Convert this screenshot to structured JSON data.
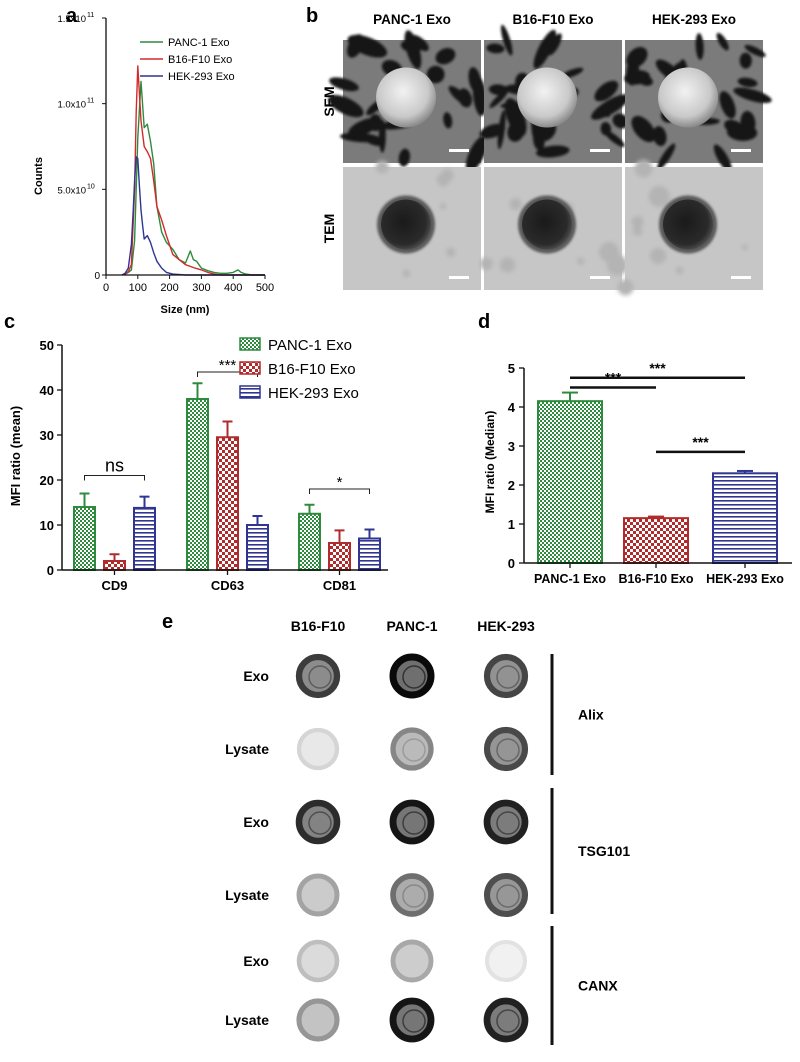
{
  "panel_letters": [
    "a",
    "b",
    "c",
    "d",
    "e"
  ],
  "chart_data": [
    {
      "panel": "a",
      "type": "line",
      "xlabel": "Size (nm)",
      "ylabel": "Counts",
      "xlim": [
        0,
        500
      ],
      "ylim": [
        0,
        150000000000.0
      ],
      "xticks": [
        0,
        100,
        200,
        300,
        400,
        500
      ],
      "yticks": [
        {
          "value": 0,
          "label": "0"
        },
        {
          "value": 50000000000.0,
          "label": "5.0x10",
          "exp": "10"
        },
        {
          "value": 100000000000.0,
          "label": "1.0x10",
          "exp": "11"
        },
        {
          "value": 150000000000.0,
          "label": "1.5x10",
          "exp": "11"
        }
      ],
      "legend_position": "top-right",
      "series": [
        {
          "name": "PANC-1 Exo",
          "color": "#2e8b3e",
          "x": [
            55,
            70,
            80,
            90,
            100,
            110,
            120,
            130,
            140,
            150,
            160,
            175,
            190,
            210,
            230,
            250,
            265,
            275,
            285,
            300,
            320,
            340,
            360,
            380,
            400,
            415,
            425,
            440,
            460,
            500
          ],
          "y": [
            0,
            1500000000.0,
            3000000000.0,
            20000000000.0,
            80000000000.0,
            113000000000.0,
            86000000000.0,
            88000000000.0,
            78000000000.0,
            65000000000.0,
            40000000000.0,
            25000000000.0,
            19000000000.0,
            15000000000.0,
            9000000000.0,
            7000000000.0,
            14000000000.0,
            9000000000.0,
            8000000000.0,
            4000000000.0,
            2500000000.0,
            1500000000.0,
            1000000000.0,
            1000000000.0,
            1500000000.0,
            3000000000.0,
            1500000000.0,
            500000000.0,
            0,
            0
          ]
        },
        {
          "name": "B16-F10 Exo",
          "color": "#d32a2a",
          "x": [
            55,
            70,
            80,
            90,
            95,
            100,
            110,
            120,
            130,
            140,
            150,
            160,
            175,
            190,
            210,
            230,
            250,
            265,
            280,
            300,
            320,
            340,
            360,
            400,
            500
          ],
          "y": [
            0,
            2000000000.0,
            6000000000.0,
            50000000000.0,
            95000000000.0,
            122000000000.0,
            90000000000.0,
            75000000000.0,
            72000000000.0,
            68000000000.0,
            55000000000.0,
            40000000000.0,
            32000000000.0,
            23000000000.0,
            12000000000.0,
            9000000000.0,
            6000000000.0,
            5000000000.0,
            4000000000.0,
            3000000000.0,
            1500000000.0,
            500000000.0,
            0,
            0,
            0
          ]
        },
        {
          "name": "HEK-293 Exo",
          "color": "#2f3591",
          "x": [
            50,
            60,
            70,
            80,
            85,
            90,
            95,
            100,
            105,
            110,
            115,
            120,
            130,
            140,
            150,
            160,
            175,
            190,
            210,
            250,
            300,
            500
          ],
          "y": [
            0,
            1000000000.0,
            4000000000.0,
            18000000000.0,
            35000000000.0,
            55000000000.0,
            69000000000.0,
            68000000000.0,
            52000000000.0,
            38000000000.0,
            29000000000.0,
            21000000000.0,
            23000000000.0,
            19000000000.0,
            13000000000.0,
            8000000000.0,
            4000000000.0,
            1500000000.0,
            500000000.0,
            0,
            0,
            0
          ]
        }
      ]
    },
    {
      "panel": "c",
      "type": "bar",
      "ylabel": "MFI ratio (mean)",
      "ylim": [
        0,
        50
      ],
      "yticks": [
        0,
        10,
        20,
        30,
        40,
        50
      ],
      "categories": [
        "CD9",
        "CD63",
        "CD81"
      ],
      "legend_position": "top-right",
      "series": [
        {
          "name": "PANC-1 Exo",
          "color": "#2e8b3e",
          "pattern": "checker",
          "values": [
            14,
            38,
            12.5
          ],
          "errors": [
            3,
            3.5,
            2
          ]
        },
        {
          "name": "B16-F10 Exo",
          "color": "#b02b2b",
          "pattern": "checker-large",
          "values": [
            2,
            29.5,
            6
          ],
          "errors": [
            1.5,
            3.5,
            2.8
          ]
        },
        {
          "name": "HEK-293 Exo",
          "color": "#2f3591",
          "pattern": "hstripes",
          "values": [
            13.8,
            10,
            7
          ],
          "errors": [
            2.5,
            2,
            2
          ]
        }
      ],
      "annotations": [
        {
          "text": "ns",
          "category": 0,
          "from_series": 0,
          "to_series": 2,
          "y": 21
        },
        {
          "text": "***",
          "category": 1,
          "from_series": 0,
          "to_series": 2,
          "y": 44
        },
        {
          "text": "*",
          "category": 2,
          "from_series": 0,
          "to_series": 2,
          "y": 18
        }
      ]
    },
    {
      "panel": "d",
      "type": "bar",
      "ylabel": "MFI ratio (Median)",
      "ylim": [
        0,
        5
      ],
      "yticks": [
        0,
        1,
        2,
        3,
        4,
        5
      ],
      "categories": [
        "PANC-1 Exo",
        "B16-F10 Exo",
        "HEK-293 Exo"
      ],
      "colors": [
        "#2e8b3e",
        "#b02b2b",
        "#2f3591"
      ],
      "patterns": [
        "checker",
        "checker-large",
        "hstripes"
      ],
      "values": [
        4.15,
        1.15,
        2.3
      ],
      "errors": [
        0.22,
        0.04,
        0.06
      ],
      "annotations": [
        {
          "text": "***",
          "from": 0,
          "to": 1,
          "y": 4.5
        },
        {
          "text": "***",
          "from": 0,
          "to": 2,
          "y": 4.75
        },
        {
          "text": "***",
          "from": 1,
          "to": 2,
          "y": 2.85
        }
      ]
    }
  ],
  "panel_b": {
    "columns": [
      "PANC-1 Exo",
      "B16-F10 Exo",
      "HEK-293 Exo"
    ],
    "rows": [
      "SEM",
      "TEM"
    ]
  },
  "panel_e": {
    "columns": [
      "B16-F10",
      "PANC-1",
      "HEK-293"
    ],
    "rows": [
      "Exo",
      "Lysate",
      "Exo",
      "Lysate",
      "Exo",
      "Lysate"
    ],
    "groups": [
      "Alix",
      "TSG101",
      "CANX"
    ],
    "intensity": [
      [
        0.78,
        1.0,
        0.74
      ],
      [
        0.1,
        0.45,
        0.72
      ],
      [
        0.85,
        0.95,
        0.9
      ],
      [
        0.32,
        0.55,
        0.7
      ],
      [
        0.2,
        0.3,
        0.04
      ],
      [
        0.38,
        0.95,
        0.9
      ]
    ]
  }
}
